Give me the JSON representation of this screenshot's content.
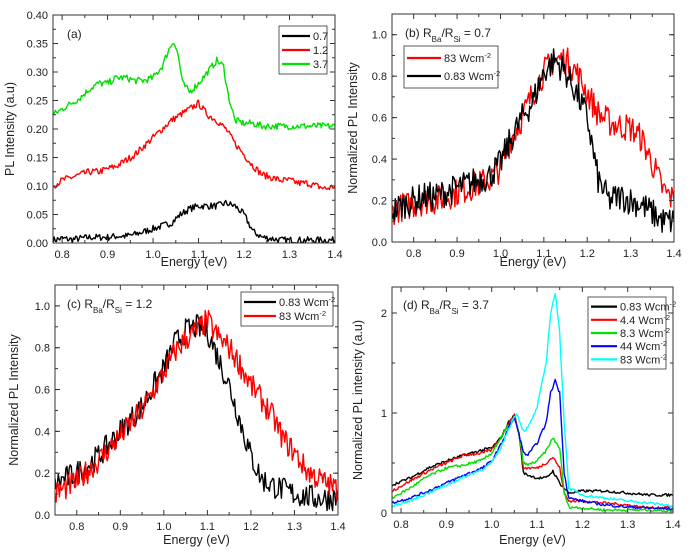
{
  "chart_data": [
    {
      "panel": "a",
      "type": "line",
      "annotation": [
        {
          "t": "(a)"
        }
      ],
      "xlabel": "Energy (eV)",
      "ylabel": "PL Intensity (a.u)",
      "xlim": [
        0.78,
        1.4
      ],
      "ylim": [
        0,
        0.4
      ],
      "xticks": [
        "0.8",
        "0.9",
        "1.0",
        "1.1",
        "1.2",
        "1.3",
        "1.4"
      ],
      "yticks": [
        "0.00",
        "0.05",
        "0.10",
        "0.15",
        "0.20",
        "0.25",
        "0.30",
        "0.35",
        "0.40"
      ],
      "legend_position": "top-right",
      "series": [
        {
          "name": [
            {
              "t": "0.7"
            }
          ],
          "color": "#000000",
          "x": [
            0.78,
            0.8,
            0.82,
            0.84,
            0.86,
            0.88,
            0.9,
            0.92,
            0.94,
            0.96,
            0.98,
            1.0,
            1.02,
            1.04,
            1.06,
            1.08,
            1.1,
            1.12,
            1.14,
            1.16,
            1.18,
            1.2,
            1.22,
            1.24,
            1.26,
            1.28,
            1.3,
            1.32,
            1.34,
            1.36,
            1.38,
            1.4
          ],
          "y": [
            0.005,
            0.008,
            0.006,
            0.008,
            0.01,
            0.01,
            0.01,
            0.012,
            0.012,
            0.015,
            0.02,
            0.025,
            0.03,
            0.035,
            0.05,
            0.06,
            0.065,
            0.065,
            0.065,
            0.07,
            0.065,
            0.05,
            0.02,
            0.01,
            0.008,
            0.005,
            0.005,
            0.005,
            0.005,
            0.005,
            0.005,
            0.005
          ]
        },
        {
          "name": [
            {
              "t": "1.2"
            }
          ],
          "color": "#ff0000",
          "x": [
            0.78,
            0.8,
            0.82,
            0.84,
            0.86,
            0.88,
            0.9,
            0.92,
            0.94,
            0.96,
            0.98,
            1.0,
            1.02,
            1.04,
            1.06,
            1.08,
            1.1,
            1.12,
            1.14,
            1.16,
            1.18,
            1.2,
            1.22,
            1.24,
            1.26,
            1.28,
            1.3,
            1.32,
            1.34,
            1.36,
            1.38,
            1.4
          ],
          "y": [
            0.1,
            0.11,
            0.115,
            0.12,
            0.125,
            0.125,
            0.13,
            0.135,
            0.145,
            0.155,
            0.17,
            0.185,
            0.2,
            0.215,
            0.225,
            0.235,
            0.245,
            0.225,
            0.215,
            0.2,
            0.175,
            0.155,
            0.135,
            0.12,
            0.115,
            0.11,
            0.11,
            0.105,
            0.105,
            0.1,
            0.095,
            0.1
          ]
        },
        {
          "name": [
            {
              "t": "3.7"
            }
          ],
          "color": "#00e000",
          "x": [
            0.78,
            0.8,
            0.82,
            0.84,
            0.86,
            0.88,
            0.9,
            0.92,
            0.94,
            0.96,
            0.98,
            1.0,
            1.02,
            1.035,
            1.045,
            1.055,
            1.065,
            1.08,
            1.1,
            1.12,
            1.14,
            1.155,
            1.165,
            1.18,
            1.2,
            1.22,
            1.24,
            1.26,
            1.28,
            1.3,
            1.32,
            1.34,
            1.36,
            1.38,
            1.4
          ],
          "y": [
            0.225,
            0.235,
            0.245,
            0.255,
            0.27,
            0.28,
            0.28,
            0.29,
            0.29,
            0.285,
            0.285,
            0.29,
            0.31,
            0.34,
            0.355,
            0.33,
            0.28,
            0.265,
            0.28,
            0.3,
            0.32,
            0.31,
            0.26,
            0.215,
            0.21,
            0.21,
            0.205,
            0.205,
            0.205,
            0.205,
            0.205,
            0.205,
            0.205,
            0.205,
            0.205
          ]
        }
      ]
    },
    {
      "panel": "b",
      "type": "line",
      "annotation": [
        {
          "t": "(b) R"
        },
        {
          "sub": "Ba"
        },
        {
          "t": "/R"
        },
        {
          "sub": "Si"
        },
        {
          "t": " = 0.7"
        }
      ],
      "xlabel": "Energy (eV)",
      "ylabel": "Normalized PL Intensity",
      "xlim": [
        0.75,
        1.4
      ],
      "ylim": [
        0,
        1.1
      ],
      "xticks": [
        "0.8",
        "0.9",
        "1.0",
        "1.1",
        "1.2",
        "1.3",
        "1.4"
      ],
      "yticks": [
        "0.0",
        "0.2",
        "0.4",
        "0.6",
        "0.8",
        "1.0"
      ],
      "legend_position": "top-left",
      "series": [
        {
          "name": [
            {
              "t": "83 Wcm"
            },
            {
              "sup": "-2"
            }
          ],
          "color": "#ff0000",
          "x": [
            0.75,
            0.775,
            0.8,
            0.825,
            0.85,
            0.875,
            0.9,
            0.925,
            0.95,
            0.975,
            1.0,
            1.025,
            1.05,
            1.075,
            1.1,
            1.125,
            1.15,
            1.175,
            1.2,
            1.225,
            1.25,
            1.275,
            1.3,
            1.325,
            1.35,
            1.375,
            1.4
          ],
          "y": [
            0.15,
            0.17,
            0.18,
            0.2,
            0.2,
            0.22,
            0.24,
            0.26,
            0.28,
            0.3,
            0.36,
            0.5,
            0.6,
            0.72,
            0.82,
            0.88,
            0.88,
            0.82,
            0.72,
            0.62,
            0.58,
            0.56,
            0.55,
            0.5,
            0.38,
            0.25,
            0.2
          ]
        },
        {
          "name": [
            {
              "t": "0.83 Wcm"
            },
            {
              "sup": "-2"
            }
          ],
          "color": "#000000",
          "x": [
            0.75,
            0.775,
            0.8,
            0.825,
            0.85,
            0.875,
            0.9,
            0.925,
            0.95,
            0.975,
            1.0,
            1.025,
            1.05,
            1.075,
            1.1,
            1.125,
            1.15,
            1.175,
            1.2,
            1.225,
            1.25,
            1.275,
            1.3,
            1.325,
            1.35,
            1.375,
            1.4
          ],
          "y": [
            0.15,
            0.18,
            0.2,
            0.22,
            0.22,
            0.24,
            0.26,
            0.28,
            0.3,
            0.32,
            0.38,
            0.5,
            0.6,
            0.68,
            0.82,
            0.88,
            0.82,
            0.72,
            0.6,
            0.3,
            0.2,
            0.22,
            0.2,
            0.18,
            0.14,
            0.1,
            0.1
          ]
        }
      ]
    },
    {
      "panel": "c",
      "type": "line",
      "annotation": [
        {
          "t": "(c) R"
        },
        {
          "sub": "Ba"
        },
        {
          "t": "/R"
        },
        {
          "sub": "Si"
        },
        {
          "t": " = 1.2"
        }
      ],
      "xlabel": "Energy (eV)",
      "ylabel": "Normalized PL Intensity",
      "xlim": [
        0.75,
        1.4
      ],
      "ylim": [
        0,
        1.1
      ],
      "xticks": [
        "0.8",
        "0.9",
        "1.0",
        "1.1",
        "1.2",
        "1.3",
        "1.4"
      ],
      "yticks": [
        "0.0",
        "0.2",
        "0.4",
        "0.6",
        "0.8",
        "1.0"
      ],
      "legend_position": "top-right",
      "series": [
        {
          "name": [
            {
              "t": "0.83 Wcm"
            },
            {
              "sup": "-2"
            }
          ],
          "color": "#000000",
          "x": [
            0.75,
            0.8,
            0.85,
            0.9,
            0.95,
            1.0,
            1.025,
            1.05,
            1.075,
            1.1,
            1.125,
            1.15,
            1.175,
            1.2,
            1.225,
            1.25,
            1.3,
            1.35,
            1.4
          ],
          "y": [
            0.15,
            0.2,
            0.28,
            0.4,
            0.52,
            0.7,
            0.82,
            0.88,
            0.9,
            0.88,
            0.75,
            0.62,
            0.45,
            0.28,
            0.17,
            0.14,
            0.1,
            0.08,
            0.08
          ]
        },
        {
          "name": [
            {
              "t": "83 Wcm"
            },
            {
              "sup": "-2"
            }
          ],
          "color": "#ff0000",
          "x": [
            0.75,
            0.8,
            0.85,
            0.9,
            0.95,
            1.0,
            1.025,
            1.05,
            1.075,
            1.1,
            1.125,
            1.15,
            1.175,
            1.2,
            1.225,
            1.25,
            1.275,
            1.3,
            1.325,
            1.35,
            1.4
          ],
          "y": [
            0.1,
            0.16,
            0.26,
            0.38,
            0.5,
            0.68,
            0.78,
            0.84,
            0.88,
            0.93,
            0.85,
            0.8,
            0.72,
            0.62,
            0.55,
            0.47,
            0.36,
            0.3,
            0.22,
            0.18,
            0.12
          ]
        }
      ]
    },
    {
      "panel": "d",
      "type": "line",
      "annotation": [
        {
          "t": "(d) R"
        },
        {
          "sub": "Ba"
        },
        {
          "t": "/R"
        },
        {
          "sub": "Si"
        },
        {
          "t": " = 3.7"
        }
      ],
      "xlabel": "Energy (eV)",
      "ylabel": "Normalized PL intensity (a.u)",
      "xlim": [
        0.78,
        1.4
      ],
      "ylim": [
        0,
        2.26
      ],
      "xticks": [
        "0.8",
        "0.9",
        "1.0",
        "1.1",
        "1.2",
        "1.3",
        "1.4"
      ],
      "yticks": [
        "0",
        "1",
        "2"
      ],
      "legend_position": "top-right",
      "series": [
        {
          "name": [
            {
              "t": "0.83 Wcm"
            },
            {
              "sup": "-2"
            }
          ],
          "color": "#000000",
          "x": [
            0.78,
            0.82,
            0.86,
            0.9,
            0.94,
            0.98,
            1.0,
            1.02,
            1.04,
            1.05,
            1.06,
            1.07,
            1.08,
            1.1,
            1.12,
            1.135,
            1.15,
            1.17,
            1.2,
            1.25,
            1.3,
            1.35,
            1.4
          ],
          "y": [
            0.28,
            0.35,
            0.45,
            0.52,
            0.58,
            0.63,
            0.65,
            0.75,
            0.93,
            0.97,
            0.8,
            0.4,
            0.38,
            0.35,
            0.35,
            0.42,
            0.3,
            0.2,
            0.22,
            0.22,
            0.2,
            0.18,
            0.18
          ]
        },
        {
          "name": [
            {
              "t": "4.4 Wcm"
            },
            {
              "sup": "-2"
            }
          ],
          "color": "#ff0000",
          "x": [
            0.78,
            0.82,
            0.86,
            0.9,
            0.94,
            0.98,
            1.0,
            1.02,
            1.04,
            1.05,
            1.06,
            1.07,
            1.08,
            1.1,
            1.12,
            1.135,
            1.15,
            1.16,
            1.17,
            1.2,
            1.25,
            1.3,
            1.35,
            1.4
          ],
          "y": [
            0.22,
            0.32,
            0.42,
            0.5,
            0.58,
            0.6,
            0.63,
            0.75,
            0.92,
            0.98,
            0.8,
            0.45,
            0.45,
            0.45,
            0.5,
            0.56,
            0.45,
            0.2,
            0.12,
            0.12,
            0.1,
            0.08,
            0.05,
            0.06
          ]
        },
        {
          "name": [
            {
              "t": "8.3 Wcm"
            },
            {
              "sup": "-2"
            }
          ],
          "color": "#00e000",
          "x": [
            0.78,
            0.82,
            0.86,
            0.9,
            0.94,
            0.98,
            1.0,
            1.02,
            1.04,
            1.05,
            1.06,
            1.07,
            1.08,
            1.1,
            1.12,
            1.135,
            1.15,
            1.16,
            1.17,
            1.2,
            1.25,
            1.3,
            1.35,
            1.4
          ],
          "y": [
            0.15,
            0.25,
            0.37,
            0.45,
            0.48,
            0.53,
            0.6,
            0.75,
            0.9,
            0.95,
            0.8,
            0.5,
            0.48,
            0.52,
            0.62,
            0.75,
            0.65,
            0.2,
            0.06,
            0.05,
            0.03,
            0.03,
            0.03,
            0.02
          ]
        },
        {
          "name": [
            {
              "t": "44 Wcm"
            },
            {
              "sup": "-2"
            }
          ],
          "color": "#0000ff",
          "x": [
            0.78,
            0.82,
            0.86,
            0.9,
            0.94,
            0.98,
            1.0,
            1.02,
            1.04,
            1.05,
            1.06,
            1.07,
            1.08,
            1.1,
            1.12,
            1.13,
            1.14,
            1.15,
            1.16,
            1.17,
            1.2,
            1.25,
            1.3,
            1.35,
            1.4
          ],
          "y": [
            0.1,
            0.15,
            0.22,
            0.3,
            0.38,
            0.45,
            0.52,
            0.68,
            0.88,
            0.95,
            0.8,
            0.6,
            0.58,
            0.7,
            0.9,
            1.2,
            1.33,
            1.2,
            0.4,
            0.15,
            0.12,
            0.08,
            0.06,
            0.05,
            0.04
          ]
        },
        {
          "name": [
            {
              "t": "83 Wcm"
            },
            {
              "sup": "-2"
            }
          ],
          "color": "#00ffff",
          "x": [
            0.78,
            0.82,
            0.86,
            0.9,
            0.94,
            0.98,
            1.0,
            1.02,
            1.04,
            1.055,
            1.07,
            1.08,
            1.1,
            1.12,
            1.13,
            1.14,
            1.15,
            1.16,
            1.17,
            1.2,
            1.25,
            1.3,
            1.35,
            1.4
          ],
          "y": [
            0.07,
            0.12,
            0.2,
            0.28,
            0.36,
            0.44,
            0.5,
            0.65,
            0.87,
            1.0,
            0.82,
            0.85,
            1.05,
            1.5,
            2.0,
            2.2,
            1.8,
            0.9,
            0.25,
            0.18,
            0.15,
            0.12,
            0.1,
            0.07
          ]
        }
      ]
    }
  ]
}
